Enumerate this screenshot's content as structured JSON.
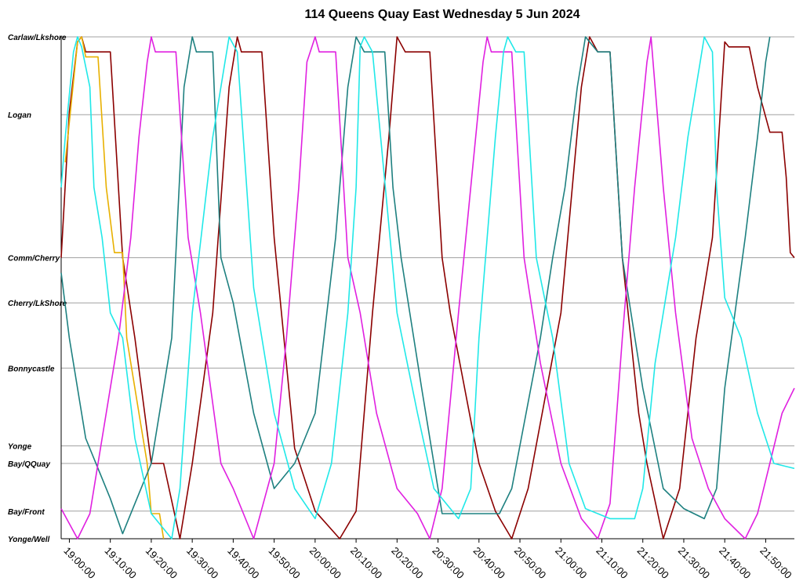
{
  "chart_data": {
    "type": "line",
    "title": "114 Queens Quay East Wednesday 5 Jun 2024",
    "x_unit": "time of day",
    "xlim": [
      "18:58:00",
      "21:57:00"
    ],
    "x_ticks": [
      "19:00:00",
      "19:10:00",
      "19:20:00",
      "19:30:00",
      "19:40:00",
      "19:50:00",
      "20:00:00",
      "20:10:00",
      "20:20:00",
      "20:30:00",
      "20:40:00",
      "20:50:00",
      "21:00:00",
      "21:10:00",
      "21:20:00",
      "21:30:00",
      "21:40:00",
      "21:50:00"
    ],
    "y_stops": [
      {
        "label": "Carlaw/Lkshore",
        "pos": 0
      },
      {
        "label": "Logan",
        "pos": 15.5
      },
      {
        "label": "Comm/Cherry",
        "pos": 44
      },
      {
        "label": "Cherry/LkShore",
        "pos": 53
      },
      {
        "label": "Bonnycastle",
        "pos": 66
      },
      {
        "label": "Yonge",
        "pos": 81.5
      },
      {
        "label": "Bay/QQuay",
        "pos": 85
      },
      {
        "label": "Bay/Front",
        "pos": 94.5
      },
      {
        "label": "Yonge/Well",
        "pos": 100
      }
    ],
    "grid": true,
    "legend": "none",
    "series": [
      {
        "color": "#8B0000",
        "points": [
          [
            "18:58:00",
            44
          ],
          [
            "19:00:00",
            15
          ],
          [
            "19:02:00",
            1
          ],
          [
            "19:03:00",
            0
          ],
          [
            "19:04:00",
            3
          ],
          [
            "19:10:00",
            3
          ],
          [
            "19:13:00",
            44
          ],
          [
            "19:16:00",
            60
          ],
          [
            "19:20:00",
            85
          ],
          [
            "19:23:00",
            85
          ],
          [
            "19:27:00",
            100
          ],
          [
            "19:30:00",
            85
          ],
          [
            "19:35:00",
            55
          ],
          [
            "19:39:00",
            10
          ],
          [
            "19:41:00",
            0
          ],
          [
            "19:42:00",
            3
          ],
          [
            "19:47:00",
            3
          ],
          [
            "19:50:00",
            40
          ],
          [
            "19:55:00",
            82
          ],
          [
            "20:00:00",
            94.5
          ],
          [
            "20:06:00",
            100
          ],
          [
            "20:10:00",
            94.5
          ],
          [
            "20:14:00",
            55
          ],
          [
            "20:18:00",
            20
          ],
          [
            "20:20:00",
            0
          ],
          [
            "20:22:00",
            3
          ],
          [
            "20:28:00",
            3
          ],
          [
            "20:31:00",
            44
          ],
          [
            "20:33:00",
            55
          ],
          [
            "20:40:00",
            85
          ],
          [
            "20:44:00",
            94.5
          ],
          [
            "20:48:00",
            100
          ],
          [
            "20:52:00",
            90
          ],
          [
            "21:00:00",
            55
          ],
          [
            "21:05:00",
            10
          ],
          [
            "21:07:00",
            0
          ],
          [
            "21:09:00",
            3
          ],
          [
            "21:12:00",
            3
          ],
          [
            "21:15:00",
            44
          ],
          [
            "21:19:00",
            75
          ],
          [
            "21:21:00",
            85
          ],
          [
            "21:25:00",
            100
          ],
          [
            "21:29:00",
            90
          ],
          [
            "21:33:00",
            60
          ],
          [
            "21:37:00",
            40
          ],
          [
            "21:40:00",
            1
          ],
          [
            "21:41:00",
            2
          ],
          [
            "21:46:00",
            2
          ],
          [
            "21:48:00",
            10
          ],
          [
            "21:51:00",
            19
          ],
          [
            "21:54:00",
            19
          ],
          [
            "21:55:00",
            28
          ],
          [
            "21:56:00",
            43
          ],
          [
            "21:57:00",
            44
          ]
        ]
      },
      {
        "color": "#E8B000",
        "points": [
          [
            "18:59:00",
            25
          ],
          [
            "19:02:00",
            1
          ],
          [
            "19:03:00",
            0
          ],
          [
            "19:04:00",
            4
          ],
          [
            "19:07:00",
            4
          ],
          [
            "19:09:00",
            30
          ],
          [
            "19:11:00",
            43
          ],
          [
            "19:13:00",
            43
          ],
          [
            "19:14:00",
            60
          ],
          [
            "19:17:00",
            75
          ],
          [
            "19:19:00",
            85
          ],
          [
            "19:20:00",
            95
          ],
          [
            "19:22:00",
            95
          ],
          [
            "19:23:00",
            100
          ]
        ]
      },
      {
        "color": "#1E8080",
        "points": [
          [
            "18:58:00",
            47
          ],
          [
            "19:00:00",
            60
          ],
          [
            "19:04:00",
            80
          ],
          [
            "19:07:00",
            86
          ],
          [
            "19:10:00",
            92
          ],
          [
            "19:13:00",
            99
          ],
          [
            "19:16:00",
            93
          ],
          [
            "19:20:00",
            85
          ],
          [
            "19:25:00",
            60
          ],
          [
            "19:28:00",
            10
          ],
          [
            "19:30:00",
            0
          ],
          [
            "19:31:00",
            3
          ],
          [
            "19:35:00",
            3
          ],
          [
            "19:37:00",
            44
          ],
          [
            "19:40:00",
            53
          ],
          [
            "19:45:00",
            75
          ],
          [
            "19:50:00",
            90
          ],
          [
            "19:55:00",
            85
          ],
          [
            "20:00:00",
            75
          ],
          [
            "20:05:00",
            40
          ],
          [
            "20:08:00",
            10
          ],
          [
            "20:10:00",
            0
          ],
          [
            "20:12:00",
            3
          ],
          [
            "20:17:00",
            3
          ],
          [
            "20:19:00",
            30
          ],
          [
            "20:21:00",
            44
          ],
          [
            "20:26:00",
            70
          ],
          [
            "20:31:00",
            95
          ],
          [
            "20:45:00",
            95
          ],
          [
            "20:48:00",
            90
          ],
          [
            "20:55:00",
            60
          ],
          [
            "20:58:00",
            44
          ],
          [
            "21:01:00",
            30
          ],
          [
            "21:04:00",
            10
          ],
          [
            "21:06:00",
            0
          ],
          [
            "21:09:00",
            3
          ],
          [
            "21:12:00",
            3
          ],
          [
            "21:15:00",
            44
          ],
          [
            "21:20:00",
            70
          ],
          [
            "21:25:00",
            90
          ],
          [
            "21:30:00",
            94
          ],
          [
            "21:35:00",
            96
          ],
          [
            "21:38:00",
            90
          ],
          [
            "21:40:00",
            70
          ],
          [
            "21:45:00",
            40
          ],
          [
            "21:48:00",
            20
          ],
          [
            "21:50:00",
            5
          ],
          [
            "21:51:00",
            0
          ]
        ]
      },
      {
        "color": "#E020E0",
        "points": [
          [
            "18:58:00",
            94
          ],
          [
            "19:02:00",
            100
          ],
          [
            "19:05:00",
            95
          ],
          [
            "19:08:00",
            80
          ],
          [
            "19:12:00",
            60
          ],
          [
            "19:15:00",
            40
          ],
          [
            "19:17:00",
            20
          ],
          [
            "19:19:00",
            5
          ],
          [
            "19:20:00",
            0
          ],
          [
            "19:21:00",
            3
          ],
          [
            "19:26:00",
            3
          ],
          [
            "19:29:00",
            40
          ],
          [
            "19:32:00",
            55
          ],
          [
            "19:37:00",
            85
          ],
          [
            "19:40:00",
            90
          ],
          [
            "19:45:00",
            100
          ],
          [
            "19:50:00",
            85
          ],
          [
            "19:53:00",
            60
          ],
          [
            "19:56:00",
            30
          ],
          [
            "19:58:00",
            5
          ],
          [
            "20:00:00",
            0
          ],
          [
            "20:01:00",
            3
          ],
          [
            "20:05:00",
            3
          ],
          [
            "20:08:00",
            44
          ],
          [
            "20:11:00",
            55
          ],
          [
            "20:15:00",
            75
          ],
          [
            "20:20:00",
            90
          ],
          [
            "20:25:00",
            95
          ],
          [
            "20:28:00",
            100
          ],
          [
            "20:31:00",
            90
          ],
          [
            "20:35:00",
            55
          ],
          [
            "20:38:00",
            30
          ],
          [
            "20:41:00",
            5
          ],
          [
            "20:42:00",
            0
          ],
          [
            "20:43:00",
            3
          ],
          [
            "20:48:00",
            3
          ],
          [
            "20:51:00",
            44
          ],
          [
            "20:55:00",
            65
          ],
          [
            "21:00:00",
            85
          ],
          [
            "21:05:00",
            96
          ],
          [
            "21:09:00",
            100
          ],
          [
            "21:12:00",
            93
          ],
          [
            "21:15:00",
            60
          ],
          [
            "21:18:00",
            30
          ],
          [
            "21:21:00",
            5
          ],
          [
            "21:22:00",
            0
          ],
          [
            "21:25:00",
            30
          ],
          [
            "21:28:00",
            55
          ],
          [
            "21:32:00",
            80
          ],
          [
            "21:36:00",
            90
          ],
          [
            "21:40:00",
            96
          ],
          [
            "21:45:00",
            100
          ],
          [
            "21:48:00",
            95
          ],
          [
            "21:51:00",
            85
          ],
          [
            "21:54:00",
            75
          ],
          [
            "21:57:00",
            70
          ]
        ]
      },
      {
        "color": "#20E8E8",
        "points": [
          [
            "18:58:00",
            30
          ],
          [
            "18:59:00",
            20
          ],
          [
            "19:01:00",
            3
          ],
          [
            "19:02:00",
            0
          ],
          [
            "19:03:00",
            2
          ],
          [
            "19:05:00",
            10
          ],
          [
            "19:06:00",
            30
          ],
          [
            "19:08:00",
            40
          ],
          [
            "19:10:00",
            55
          ],
          [
            "19:13:00",
            60
          ],
          [
            "19:16:00",
            80
          ],
          [
            "19:20:00",
            95
          ],
          [
            "19:25:00",
            100
          ],
          [
            "19:27:00",
            90
          ],
          [
            "19:30:00",
            55
          ],
          [
            "19:35:00",
            20
          ],
          [
            "19:38:00",
            5
          ],
          [
            "19:39:00",
            0
          ],
          [
            "19:41:00",
            3
          ],
          [
            "19:45:00",
            50
          ],
          [
            "19:50:00",
            75
          ],
          [
            "19:55:00",
            90
          ],
          [
            "20:00:00",
            96
          ],
          [
            "20:04:00",
            85
          ],
          [
            "20:08:00",
            55
          ],
          [
            "20:10:00",
            30
          ],
          [
            "20:11:00",
            2
          ],
          [
            "20:12:00",
            0
          ],
          [
            "20:14:00",
            3
          ],
          [
            "20:16:00",
            20
          ],
          [
            "20:20:00",
            55
          ],
          [
            "20:25:00",
            75
          ],
          [
            "20:29:00",
            90
          ],
          [
            "20:35:00",
            96
          ],
          [
            "20:38:00",
            90
          ],
          [
            "20:40:00",
            60
          ],
          [
            "20:44:00",
            20
          ],
          [
            "20:46:00",
            3
          ],
          [
            "20:47:00",
            0
          ],
          [
            "20:49:00",
            3
          ],
          [
            "20:51:00",
            3
          ],
          [
            "20:54:00",
            44
          ],
          [
            "20:58:00",
            60
          ],
          [
            "21:02:00",
            85
          ],
          [
            "21:06:00",
            94
          ],
          [
            "21:12:00",
            96
          ],
          [
            "21:18:00",
            96
          ],
          [
            "21:20:00",
            90
          ],
          [
            "21:23:00",
            65
          ],
          [
            "21:28:00",
            40
          ],
          [
            "21:31:00",
            20
          ],
          [
            "21:34:00",
            5
          ],
          [
            "21:35:00",
            0
          ],
          [
            "21:37:00",
            3
          ],
          [
            "21:38:00",
            30
          ],
          [
            "21:40:00",
            52
          ],
          [
            "21:44:00",
            60
          ],
          [
            "21:48:00",
            75
          ],
          [
            "21:52:00",
            85
          ],
          [
            "21:57:00",
            86
          ]
        ]
      }
    ]
  }
}
